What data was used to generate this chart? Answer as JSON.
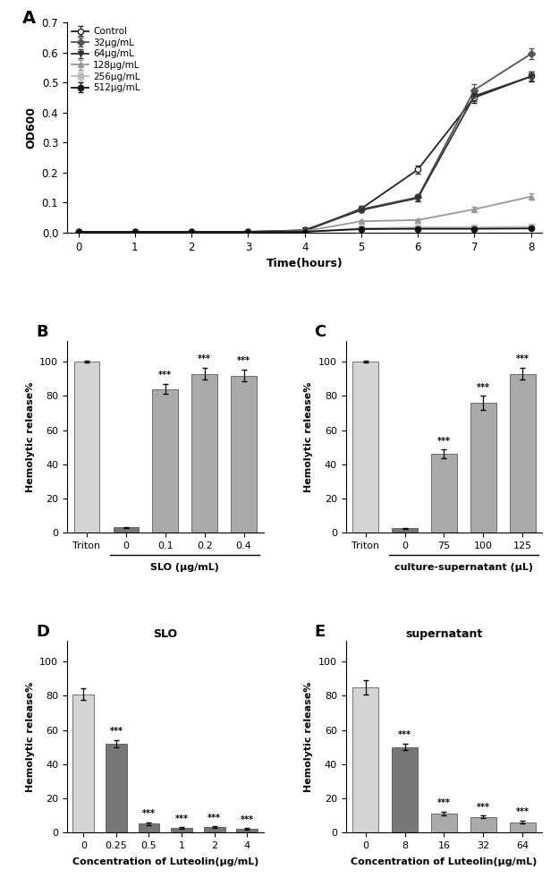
{
  "panel_A": {
    "xlabel": "Time(hours)",
    "ylabel": "OD600",
    "ylim": [
      0,
      0.7
    ],
    "yticks": [
      0.0,
      0.1,
      0.2,
      0.3,
      0.4,
      0.5,
      0.6,
      0.7
    ],
    "xticks": [
      0,
      1,
      2,
      3,
      4,
      5,
      6,
      7,
      8
    ],
    "time": [
      0,
      1,
      2,
      3,
      4,
      5,
      6,
      7,
      8
    ],
    "series": [
      {
        "label": "Control",
        "color": "#222222",
        "marker": "o",
        "mfc": "white",
        "lw": 1.3,
        "values": [
          0.003,
          0.003,
          0.003,
          0.003,
          0.005,
          0.08,
          0.21,
          0.45,
          0.52
        ],
        "errors": [
          0.001,
          0.001,
          0.001,
          0.001,
          0.002,
          0.008,
          0.012,
          0.018,
          0.016
        ]
      },
      {
        "label": "32μg/mL",
        "color": "#555555",
        "marker": "D",
        "mfc": "#555555",
        "lw": 1.3,
        "values": [
          0.003,
          0.003,
          0.003,
          0.003,
          0.008,
          0.078,
          0.118,
          0.475,
          0.595
        ],
        "errors": [
          0.001,
          0.001,
          0.001,
          0.001,
          0.002,
          0.008,
          0.01,
          0.018,
          0.018
        ]
      },
      {
        "label": "64μg/mL",
        "color": "#333333",
        "marker": "v",
        "mfc": "#333333",
        "lw": 1.3,
        "values": [
          0.003,
          0.003,
          0.003,
          0.003,
          0.008,
          0.075,
          0.115,
          0.455,
          0.52
        ],
        "errors": [
          0.001,
          0.001,
          0.001,
          0.001,
          0.002,
          0.007,
          0.01,
          0.016,
          0.015
        ]
      },
      {
        "label": "128μg/mL",
        "color": "#999999",
        "marker": "^",
        "mfc": "#999999",
        "lw": 1.3,
        "values": [
          0.003,
          0.003,
          0.003,
          0.003,
          0.005,
          0.038,
          0.042,
          0.078,
          0.12
        ],
        "errors": [
          0.001,
          0.001,
          0.001,
          0.001,
          0.001,
          0.004,
          0.004,
          0.008,
          0.01
        ]
      },
      {
        "label": "256μg/mL",
        "color": "#bbbbbb",
        "marker": "s",
        "mfc": "#bbbbbb",
        "lw": 1.3,
        "values": [
          0.003,
          0.003,
          0.003,
          0.003,
          0.003,
          0.015,
          0.018,
          0.018,
          0.02
        ],
        "errors": [
          0.001,
          0.001,
          0.001,
          0.001,
          0.001,
          0.002,
          0.002,
          0.002,
          0.002
        ]
      },
      {
        "label": "512μg/mL",
        "color": "#111111",
        "marker": "o",
        "mfc": "#111111",
        "lw": 1.3,
        "values": [
          0.003,
          0.003,
          0.003,
          0.003,
          0.003,
          0.012,
          0.013,
          0.013,
          0.014
        ],
        "errors": [
          0.001,
          0.001,
          0.001,
          0.001,
          0.001,
          0.001,
          0.001,
          0.001,
          0.001
        ]
      }
    ]
  },
  "panel_B": {
    "panel_label": "B",
    "xlabel": "SLO (μg/mL)",
    "ylabel": "Hemolytic release%",
    "ylim": [
      0,
      112
    ],
    "yticks": [
      0,
      20,
      40,
      60,
      80,
      100
    ],
    "categories": [
      "Triton",
      "0",
      "0.1",
      "0.2",
      "0.4"
    ],
    "values": [
      100,
      3,
      84,
      93,
      92
    ],
    "errors": [
      0.5,
      0.4,
      3,
      3.5,
      3.5
    ],
    "bar_colors": [
      "#d4d4d4",
      "#777777",
      "#aaaaaa",
      "#aaaaaa",
      "#aaaaaa"
    ],
    "sig_labels": [
      "",
      "",
      "***",
      "***",
      "***"
    ],
    "bracket_start": 1,
    "has_bracket": true
  },
  "panel_C": {
    "panel_label": "C",
    "xlabel": "culture-supernatant (μL)",
    "ylabel": "Hemolytic release%",
    "ylim": [
      0,
      112
    ],
    "yticks": [
      0,
      20,
      40,
      60,
      80,
      100
    ],
    "categories": [
      "Triton",
      "0",
      "75",
      "100",
      "125"
    ],
    "values": [
      100,
      2.5,
      46,
      76,
      93
    ],
    "errors": [
      0.5,
      0.3,
      2.5,
      4,
      3.5
    ],
    "bar_colors": [
      "#d4d4d4",
      "#777777",
      "#aaaaaa",
      "#aaaaaa",
      "#aaaaaa"
    ],
    "sig_labels": [
      "",
      "",
      "***",
      "***",
      "***"
    ],
    "bracket_start": 1,
    "has_bracket": true
  },
  "panel_D": {
    "panel_label": "D",
    "title": "SLO",
    "xlabel": "Concentration of Luteolin(μg/mL)",
    "ylabel": "Hemolytic release%",
    "ylim": [
      0,
      112
    ],
    "yticks": [
      0,
      20,
      40,
      60,
      80,
      100
    ],
    "categories": [
      "0",
      "0.25",
      "0.5",
      "1",
      "2",
      "4"
    ],
    "values": [
      81,
      52,
      5,
      2.5,
      3,
      2
    ],
    "errors": [
      3.5,
      2,
      0.8,
      0.4,
      0.5,
      0.4
    ],
    "bar_colors": [
      "#d4d4d4",
      "#777777",
      "#777777",
      "#777777",
      "#777777",
      "#777777"
    ],
    "sig_labels": [
      "",
      "***",
      "***",
      "***",
      "***",
      "***"
    ],
    "has_bracket": false
  },
  "panel_E": {
    "panel_label": "E",
    "title": "supernatant",
    "xlabel": "Concentration of Luteolin(μg/mL)",
    "ylabel": "Hemolytic release%",
    "ylim": [
      0,
      112
    ],
    "yticks": [
      0,
      20,
      40,
      60,
      80,
      100
    ],
    "categories": [
      "0",
      "8",
      "16",
      "32",
      "64"
    ],
    "values": [
      85,
      50,
      11,
      9,
      6
    ],
    "errors": [
      4,
      2,
      1.2,
      0.8,
      0.7
    ],
    "bar_colors": [
      "#d4d4d4",
      "#777777",
      "#aaaaaa",
      "#aaaaaa",
      "#aaaaaa"
    ],
    "sig_labels": [
      "",
      "***",
      "***",
      "***",
      "***"
    ],
    "has_bracket": false
  }
}
